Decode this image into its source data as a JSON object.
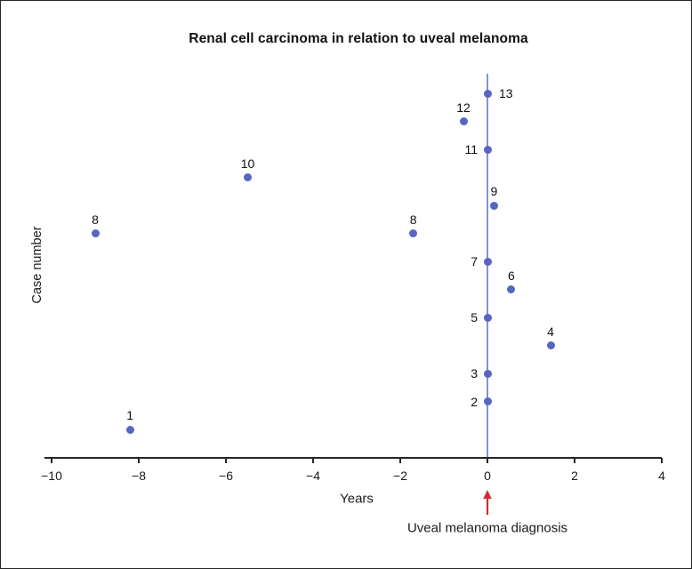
{
  "chart_data": {
    "type": "scatter",
    "title": "Renal cell carcinoma in relation to uveal melanoma",
    "xlabel": "Years",
    "ylabel": "Case number",
    "xlim": [
      -10,
      4
    ],
    "ylim": [
      0,
      13.7
    ],
    "grid": false,
    "x_ticks": [
      {
        "v": -10,
        "t": "−10"
      },
      {
        "v": -8,
        "t": "−8"
      },
      {
        "v": -6,
        "t": "−6"
      },
      {
        "v": -4,
        "t": "−4"
      },
      {
        "v": -2,
        "t": "−2"
      },
      {
        "v": 0,
        "t": "0"
      },
      {
        "v": 2,
        "t": "2"
      },
      {
        "v": 4,
        "t": "4"
      }
    ],
    "marker_color": "#5666c2",
    "reference_line": {
      "x": 0,
      "color": "#8392d9",
      "arrow_color": "#cb3034",
      "label": "Uveal melanoma diagnosis"
    },
    "points": [
      {
        "case": 1,
        "years": -8.2,
        "label": "1",
        "label_pos": "above"
      },
      {
        "case": 2,
        "years": 0,
        "label": "2",
        "label_pos": "left"
      },
      {
        "case": 3,
        "years": 0,
        "label": "3",
        "label_pos": "left"
      },
      {
        "case": 4,
        "years": 1.45,
        "label": "4",
        "label_pos": "above"
      },
      {
        "case": 5,
        "years": 0,
        "label": "5",
        "label_pos": "left"
      },
      {
        "case": 6,
        "years": 0.55,
        "label": "6",
        "label_pos": "above"
      },
      {
        "case": 7,
        "years": 0,
        "label": "7",
        "label_pos": "left"
      },
      {
        "case": 8,
        "years": -9.0,
        "label": "8",
        "label_pos": "above"
      },
      {
        "case": 8,
        "years": -1.7,
        "label": "8",
        "label_pos": "above"
      },
      {
        "case": 9,
        "years": 0.15,
        "label": "9",
        "label_pos": "above"
      },
      {
        "case": 10,
        "years": -5.5,
        "label": "10",
        "label_pos": "above"
      },
      {
        "case": 11,
        "years": 0,
        "label": "11",
        "label_pos": "left"
      },
      {
        "case": 12,
        "years": -0.55,
        "label": "12",
        "label_pos": "above"
      },
      {
        "case": 13,
        "years": 0,
        "label": "13",
        "label_pos": "right"
      }
    ]
  }
}
